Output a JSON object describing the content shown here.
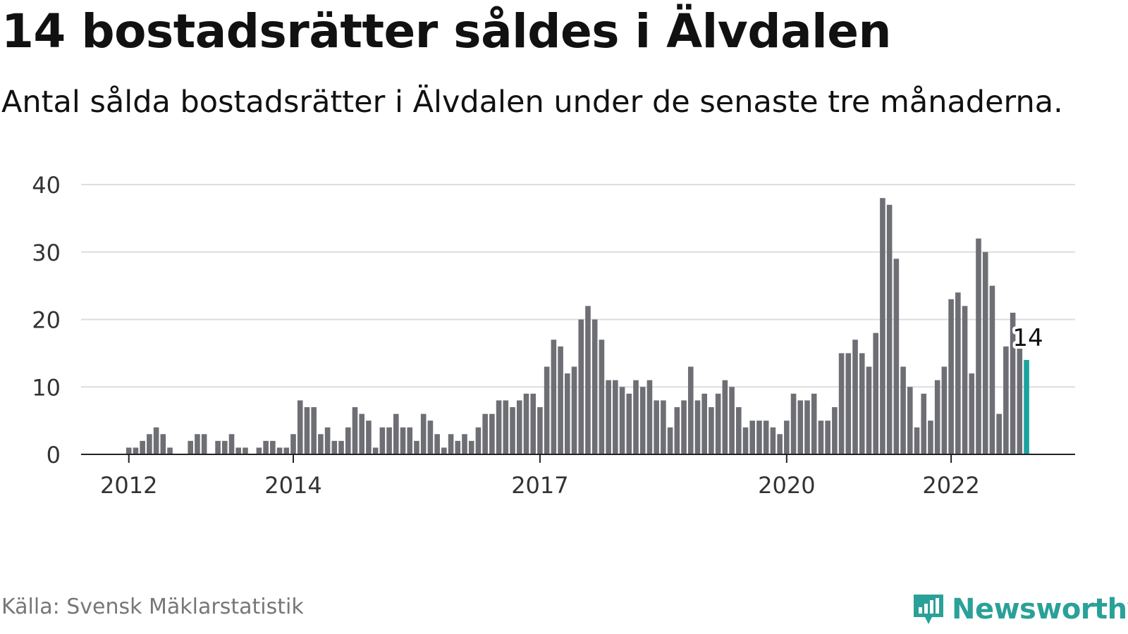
{
  "title": "14 bostadsrätter såldes i Älvdalen",
  "subtitle": "Antal sålda bostadsrätter i Älvdalen under de senaste tre månaderna.",
  "source": "Källa: Svensk Mäklarstatistik",
  "brand": {
    "name": "Newsworthy",
    "icon": "newsworthy-logo-icon",
    "color": "#2aa198"
  },
  "colors": {
    "bar": "#6e6e75",
    "highlight": "#1aa3a0",
    "grid": "#dddddd",
    "axis": "#222222"
  },
  "chart_data": {
    "type": "bar",
    "xlabel": "",
    "ylabel": "",
    "ylim": [
      0,
      40
    ],
    "yticks": [
      0,
      10,
      20,
      30,
      40
    ],
    "grid": true,
    "xticks": [
      {
        "label": "2012",
        "index": 1
      },
      {
        "label": "2014",
        "index": 25
      },
      {
        "label": "2017",
        "index": 61
      },
      {
        "label": "2020",
        "index": 97
      },
      {
        "label": "2022",
        "index": 121
      }
    ],
    "values": [
      0,
      1,
      1,
      2,
      3,
      4,
      3,
      1,
      0,
      0,
      2,
      3,
      3,
      0,
      2,
      2,
      3,
      1,
      1,
      0,
      1,
      2,
      2,
      1,
      1,
      3,
      8,
      7,
      7,
      3,
      4,
      2,
      2,
      4,
      7,
      6,
      5,
      1,
      4,
      4,
      6,
      4,
      4,
      2,
      6,
      5,
      3,
      1,
      3,
      2,
      3,
      2,
      4,
      6,
      6,
      8,
      8,
      7,
      8,
      9,
      9,
      7,
      13,
      17,
      16,
      12,
      13,
      20,
      22,
      20,
      17,
      11,
      11,
      10,
      9,
      11,
      10,
      11,
      8,
      8,
      4,
      7,
      8,
      13,
      8,
      9,
      7,
      9,
      11,
      10,
      7,
      4,
      5,
      5,
      5,
      4,
      3,
      5,
      9,
      8,
      8,
      9,
      5,
      5,
      7,
      15,
      15,
      17,
      15,
      13,
      18,
      38,
      37,
      29,
      13,
      10,
      4,
      9,
      5,
      11,
      13,
      23,
      24,
      22,
      12,
      32,
      30,
      25,
      6,
      16,
      21,
      16,
      14
    ],
    "highlight_index": 132,
    "annotation": {
      "label": "14",
      "index": 132
    }
  }
}
